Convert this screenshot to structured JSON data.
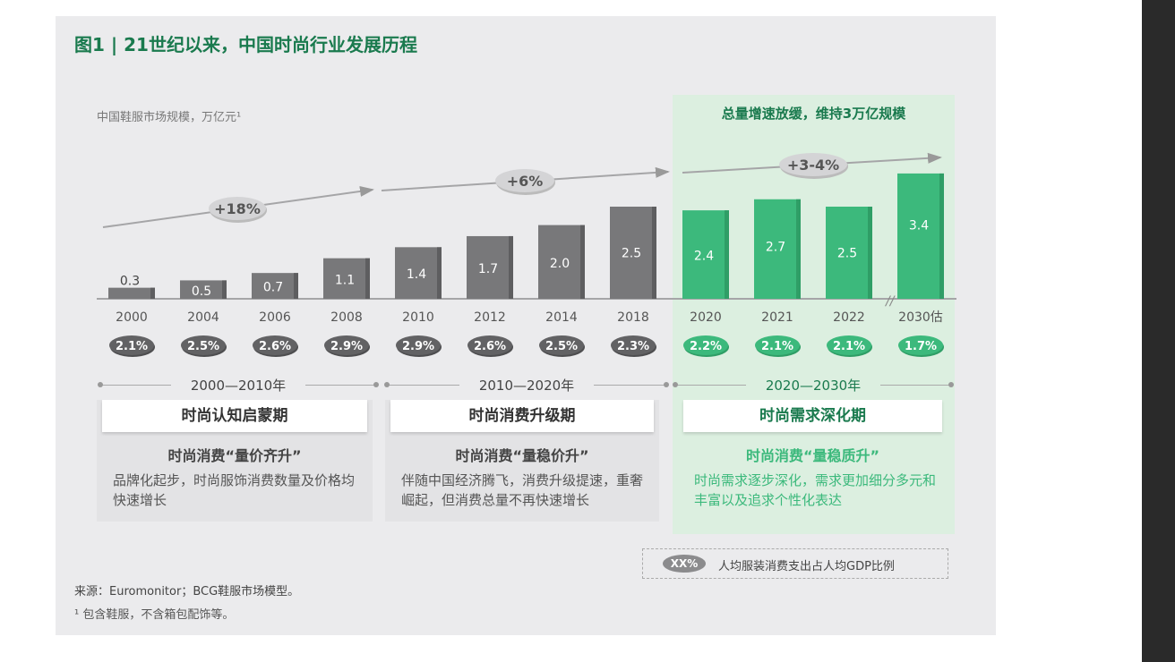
{
  "title": "图1 | 21世纪以来，中国时尚行业发展历程",
  "green_header": "总量增速放缓，维持3万亿规模",
  "colors": {
    "gray_bar": "#78787a",
    "green_bar": "#3cb97c",
    "title": "#1a7a4e",
    "gray_pill": "#626264",
    "green_pill": "#3cb97c"
  },
  "chart_data": {
    "type": "bar",
    "ylabel": "中国鞋服市场规模，万亿元¹",
    "categories": [
      "2000",
      "2004",
      "2006",
      "2008",
      "2010",
      "2012",
      "2014",
      "2018",
      "2020",
      "2021",
      "2022",
      "2030估"
    ],
    "values": [
      0.3,
      0.5,
      0.7,
      1.1,
      1.4,
      1.7,
      2.0,
      2.5,
      2.4,
      2.7,
      2.5,
      3.4
    ],
    "value_labels": [
      "0.3",
      "0.5",
      "0.7",
      "1.1",
      "1.4",
      "1.7",
      "2.0",
      "2.5",
      "2.4",
      "2.7",
      "2.5",
      "3.4"
    ],
    "gdp_share": [
      "2.1%",
      "2.5%",
      "2.6%",
      "2.9%",
      "2.9%",
      "2.6%",
      "2.5%",
      "2.3%",
      "2.2%",
      "2.1%",
      "2.1%",
      "1.7%"
    ],
    "series_group": [
      "gray",
      "gray",
      "gray",
      "gray",
      "gray",
      "gray",
      "gray",
      "gray",
      "green",
      "green",
      "green",
      "green"
    ],
    "ylim": [
      0,
      3.5
    ],
    "growth_annotations": [
      "+18%",
      "+6%",
      "+3-4%"
    ]
  },
  "eras": [
    {
      "range": "2000—2010年",
      "phase": "时尚认知启蒙期",
      "subtitle": "时尚消费“量价齐升”",
      "desc": "品牌化起步，时尚服饰消费数量及价格均快速增长"
    },
    {
      "range": "2010—2020年",
      "phase": "时尚消费升级期",
      "subtitle": "时尚消费“量稳价升”",
      "desc": "伴随中国经济腾飞，消费升级提速，重奢崛起，但消费总量不再快速增长"
    },
    {
      "range": "2020—2030年",
      "phase": "时尚需求深化期",
      "subtitle": "时尚消费“量稳质升”",
      "desc": "时尚需求逐步深化，需求更加细分多元和丰富以及追求个性化表达"
    }
  ],
  "legend": {
    "pill": "XX%",
    "text": "人均服装消费支出占人均GDP比例"
  },
  "source": "来源：Euromonitor；BCG鞋服市场模型。",
  "note": "¹ 包含鞋服，不含箱包配饰等。"
}
